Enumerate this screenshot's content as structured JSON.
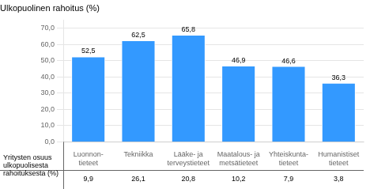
{
  "chart_data": {
    "type": "bar",
    "title": "Ulkopuolinen rahoitus (%)",
    "categories": [
      "Luonnon-\ntieteet",
      "Tekniikka",
      "Lääke- ja\nterveystieteet",
      "Maatalous- ja\nmetsätieteet",
      "Yhteiskunta-\ntieteet",
      "Humanistiset\ntieteet"
    ],
    "values": [
      52.5,
      62.5,
      65.8,
      46.9,
      46.6,
      36.3
    ],
    "value_labels": [
      "52,5",
      "62,5",
      "65,8",
      "46,9",
      "46,6",
      "36,3"
    ],
    "data_labels": true,
    "color": "#3399FF",
    "ylim": [
      0,
      75
    ],
    "yticks": [
      {
        "value": 0,
        "label": "0,0"
      },
      {
        "value": 10,
        "label": "10,0"
      },
      {
        "value": 20,
        "label": "20,0"
      },
      {
        "value": 30,
        "label": "30,0"
      },
      {
        "value": 40,
        "label": "40,0"
      },
      {
        "value": 50,
        "label": "50,0"
      },
      {
        "value": 60,
        "label": "60,0"
      },
      {
        "value": 70,
        "label": "70,0"
      }
    ],
    "grid": true,
    "table": {
      "label": "Yritysten osuus\nulkopuolisesta\nrahoituksesta (%)",
      "values": [
        9.9,
        26.1,
        20.8,
        10.2,
        7.9,
        3.8
      ],
      "value_labels": [
        "9,9",
        "26,1",
        "20,8",
        "10,2",
        "7,9",
        "3,8"
      ]
    }
  }
}
